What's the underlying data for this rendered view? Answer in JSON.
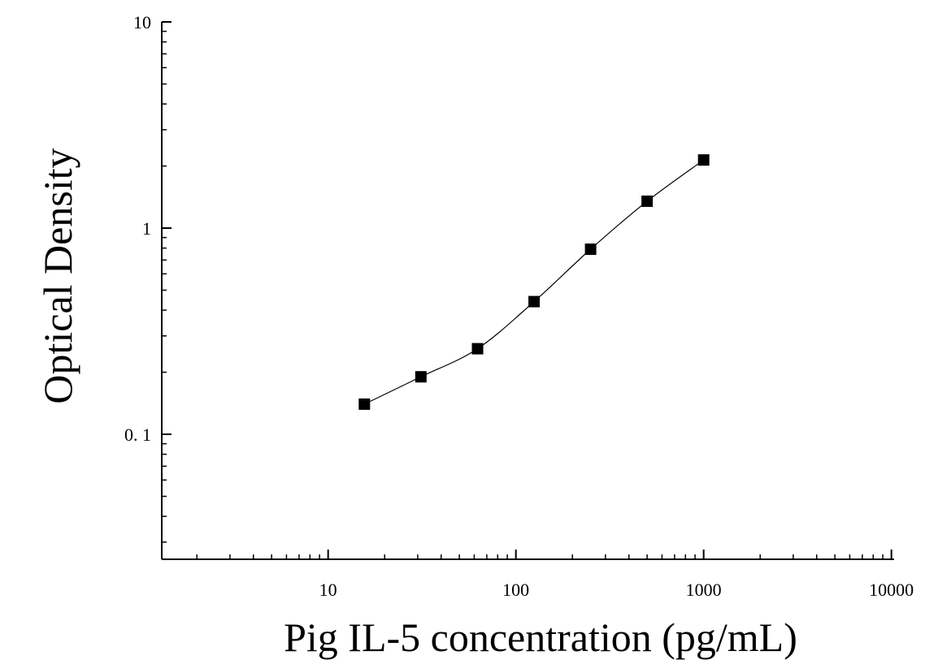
{
  "chart_data": {
    "type": "scatter",
    "title": "",
    "xlabel": "Pig IL-5 concentration (pg/mL)",
    "ylabel": "Optical Density",
    "x_scale": "log",
    "y_scale": "log",
    "xlim": [
      1.3,
      10000
    ],
    "ylim": [
      0.026,
      10
    ],
    "x_ticks": [
      {
        "value": 10,
        "label": "10"
      },
      {
        "value": 100,
        "label": "100"
      },
      {
        "value": 1000,
        "label": "1000"
      },
      {
        "value": 10000,
        "label": "10000"
      }
    ],
    "y_ticks": [
      {
        "value": 0.1,
        "label": "0. 1"
      },
      {
        "value": 1,
        "label": "1"
      },
      {
        "value": 10,
        "label": "10"
      }
    ],
    "grid": false,
    "legend": false,
    "series": [
      {
        "marker": "square",
        "fitted_curve": true,
        "color": "#000000",
        "points": [
          {
            "x": 15.6,
            "y": 0.14
          },
          {
            "x": 31.2,
            "y": 0.19
          },
          {
            "x": 62.5,
            "y": 0.26
          },
          {
            "x": 125,
            "y": 0.44
          },
          {
            "x": 250,
            "y": 0.79
          },
          {
            "x": 500,
            "y": 1.35
          },
          {
            "x": 1000,
            "y": 2.14
          }
        ]
      }
    ]
  }
}
